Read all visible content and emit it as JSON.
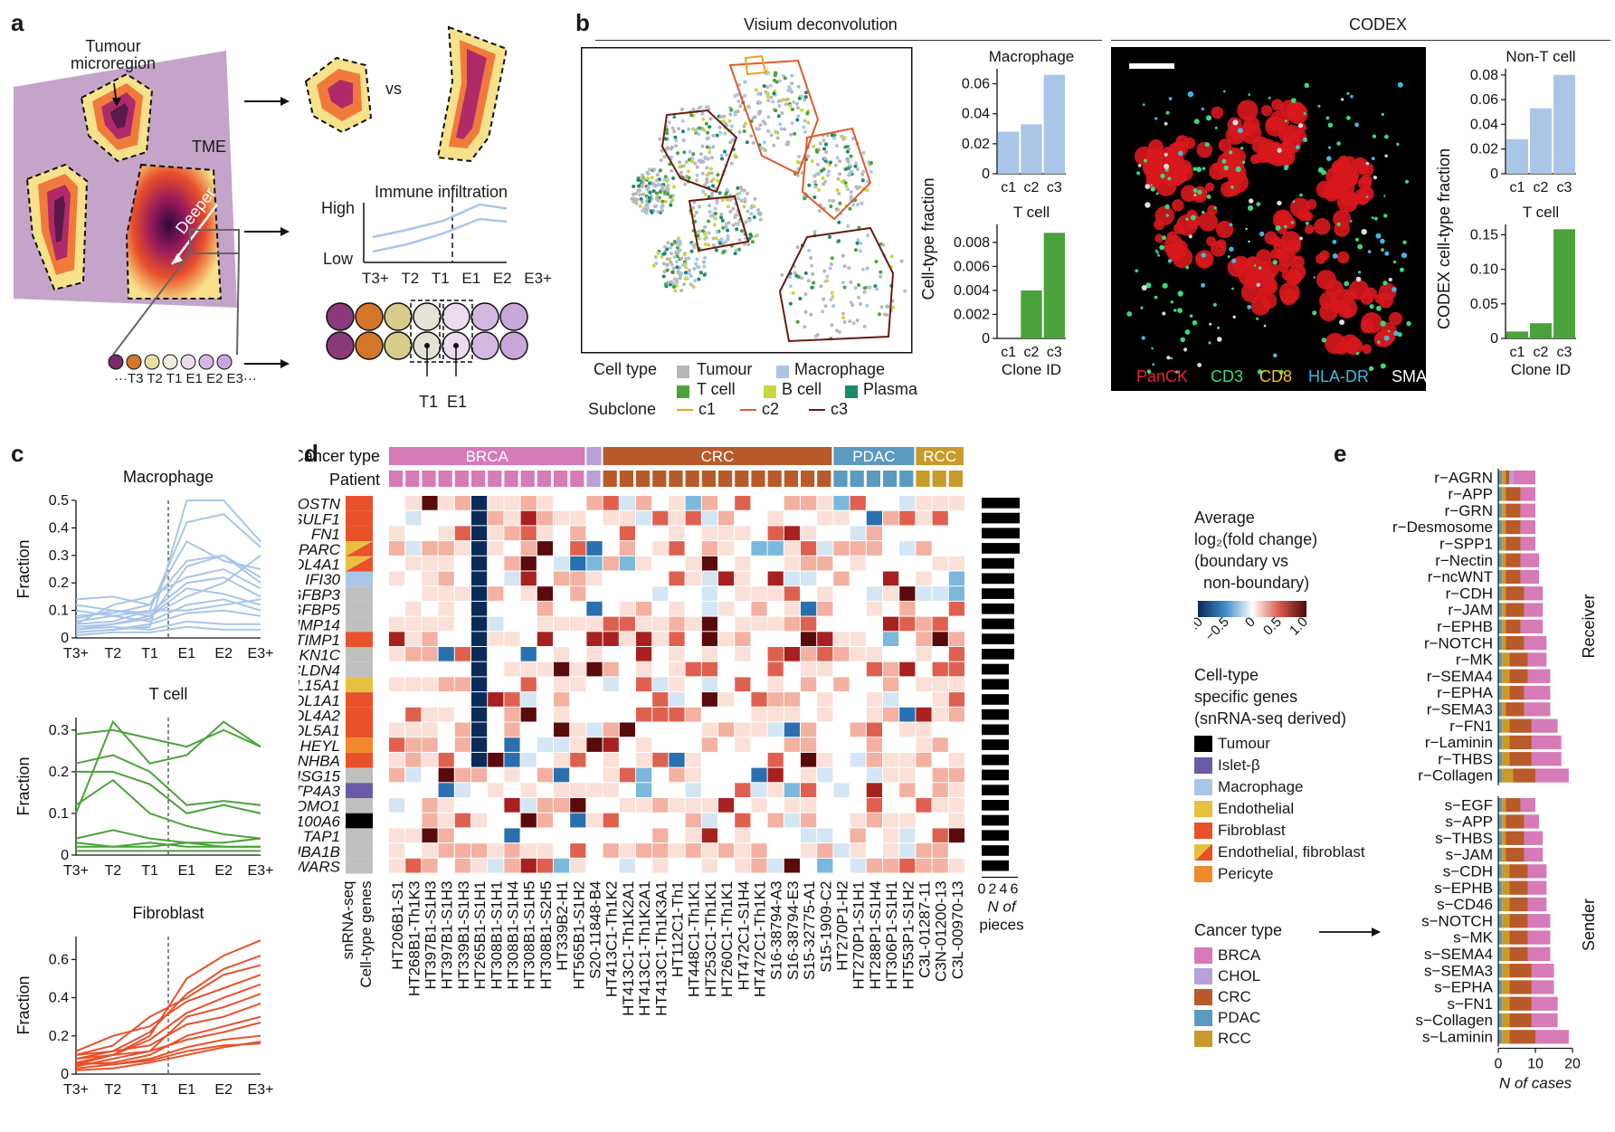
{
  "colors": {
    "tme": "#c4a4c8",
    "tumour_dark": "#5a1a4a",
    "tumour_mid": "#b02a6a",
    "tumour_orange": "#f07a3c",
    "tumour_yellow": "#f7e18a",
    "light_blue": "#a9c6e8",
    "green": "#4ba23a",
    "fibro": "#e8512a",
    "brca": "#d67ab8",
    "chol": "#b8a0d8",
    "crc": "#b85a2a",
    "pdac": "#5a9ac0",
    "rcc": "#c89a2a",
    "heat_neg": "#1a3a6a",
    "heat_pos": "#5a0a0a"
  },
  "panel_a": {
    "label": "a",
    "tumour_microregion": [
      "Tumour",
      "microregion"
    ],
    "tme": "TME",
    "vs": "vs",
    "deeper": "Deeper",
    "immune_title": "Immune infiltration",
    "high": "High",
    "low": "Low",
    "layer_axis": [
      "T3+",
      "T2",
      "T1",
      "E1",
      "E2",
      "E3+"
    ],
    "layer_strip": "···T3 T2 T1 E1 E2 E3···",
    "t1": "T1",
    "e1": "E1"
  },
  "panel_b": {
    "label": "b",
    "visium_title": "Visium deconvolution",
    "codex_title": "CODEX",
    "legend_cell_type": "Cell type",
    "legend_subclone": "Subclone",
    "cell_types": [
      {
        "name": "Tumour",
        "color": "#b8b8b8"
      },
      {
        "name": "Macrophage",
        "color": "#a9c6e8"
      },
      {
        "name": "T cell",
        "color": "#4ba23a"
      },
      {
        "name": "B cell",
        "color": "#c8d840"
      },
      {
        "name": "Plasma",
        "color": "#1a8a6a"
      }
    ],
    "subclones": [
      {
        "name": "c1",
        "color": "#f0a020"
      },
      {
        "name": "c2",
        "color": "#e05a2a"
      },
      {
        "name": "c3",
        "color": "#6a1a10"
      }
    ],
    "codex_markers": [
      {
        "name": "PanCK",
        "color": "#e8242a"
      },
      {
        "name": "CD3",
        "color": "#3ad87a"
      },
      {
        "name": "CD8",
        "color": "#f0c020"
      },
      {
        "name": "HLA-DR",
        "color": "#40b8e0"
      },
      {
        "name": "SMA",
        "color": "#ffffff"
      }
    ]
  },
  "panel_c": {
    "label": "c",
    "xlabel": [
      "T3+",
      "T2",
      "T1",
      "E1",
      "E2",
      "E3+"
    ],
    "ylabel": "Fraction"
  },
  "panel_d": {
    "label": "d",
    "chol_label": "CHOL",
    "cancer_type_label": "Cancer type",
    "patient_label": "Patient",
    "legend_avg_title": [
      "Average",
      "log₂(fold change)",
      "(boundary vs",
      "non-boundary)"
    ],
    "legend_ticks": [
      "−1.0",
      "−0.5",
      "0",
      "0.5",
      "1.0"
    ],
    "legend_celltype_title": [
      "Cell-type",
      "specific genes",
      "(snRNA-seq derived)"
    ],
    "celltype_legend": [
      {
        "name": "Tumour",
        "color": "#000000"
      },
      {
        "name": "Islet-β",
        "color": "#6a5aa8"
      },
      {
        "name": "Macrophage",
        "color": "#a9c6e8"
      },
      {
        "name": "Endothelial",
        "color": "#e8c040"
      },
      {
        "name": "Fibroblast",
        "color": "#e8512a"
      },
      {
        "name": "Endothelial, fibroblast",
        "color": "split"
      },
      {
        "name": "Pericyte",
        "color": "#f08a2a"
      }
    ],
    "cancer_type_legend_title": "Cancer type",
    "cancer_type_legend": [
      {
        "name": "BRCA",
        "color": "#d67ab8"
      },
      {
        "name": "CHOL",
        "color": "#b8a0d8"
      },
      {
        "name": "CRC",
        "color": "#b85a2a"
      },
      {
        "name": "PDAC",
        "color": "#5a9ac0"
      },
      {
        "name": "RCC",
        "color": "#c89a2a"
      }
    ],
    "bar_axis_ticks": [
      "0",
      "2",
      "4",
      "6"
    ],
    "bar_axis_label": [
      "N of",
      "pieces"
    ],
    "left_col_labels": [
      "snRNA-seq",
      "Cell-type genes"
    ],
    "genes": [
      "POSTN",
      "SULF1",
      "FN1",
      "SPARC",
      "COL4A1",
      "IFI30",
      "IGFBP3",
      "IGFBP5",
      "MMP14",
      "TIMP1",
      "CDKN1C",
      "CLDN4",
      "COL15A1",
      "COL1A1",
      "COL4A2",
      "COL5A1",
      "HEYL",
      "INHBA",
      "ISG15",
      "PTP4A3",
      "ROMO1",
      "S100A6",
      "TAP1",
      "TUBA1B",
      "WARS"
    ],
    "gene_celltype": [
      "Fibroblast",
      "Fibroblast",
      "Fibroblast",
      "Endothelial, fibroblast",
      "Endothelial, fibroblast",
      "Macrophage",
      "Other",
      "Other",
      "Other",
      "Fibroblast",
      "Other",
      "Other",
      "Endothelial",
      "Fibroblast",
      "Fibroblast",
      "Fibroblast",
      "Pericyte",
      "Fibroblast",
      "Other",
      "Islet-β",
      "Other",
      "Tumour",
      "Other",
      "Other",
      "Other"
    ],
    "samples": [
      "HT206B1-S1",
      "HT268B1-Th1K3",
      "HT397B1-S1H3",
      "HT397B1-S1H3",
      "HT339B1-S1H3",
      "HT265B1-S1H1",
      "HT308B1-S1H1",
      "HT308B1-S1H4",
      "HT308B1-S1H5",
      "HT308B1-S2H5",
      "HT339B2-H1",
      "HT565B1-S1H2",
      "S20-11848-B4",
      "HT413C1-Th1K2",
      "HT413C1-Th1K2A1",
      "HT413C1-Th1K2A1",
      "HT413C1-Th1K3A1",
      "HT112C1-Th1",
      "HT448C1-Th1K1",
      "HT253C1-Th1K1",
      "HT260C1-Th1K1",
      "HT472C1-S1H4",
      "HT472C1-Th1K1",
      "S16-38794-A3",
      "S16-38794-E3",
      "S15-32775-A1",
      "S15-1909-C2",
      "HT270P1-H2",
      "HT270P1-S1H1",
      "HT288P1-S1H4",
      "HT306P1-S1H1",
      "HT553P1-S1H2",
      "C3L-01287-11",
      "C3N-01200-13",
      "C3L-00970-13"
    ],
    "sample_cancer": [
      "BRCA",
      "BRCA",
      "BRCA",
      "BRCA",
      "BRCA",
      "BRCA",
      "BRCA",
      "BRCA",
      "BRCA",
      "BRCA",
      "BRCA",
      "BRCA",
      "CHOL",
      "CRC",
      "CRC",
      "CRC",
      "CRC",
      "CRC",
      "CRC",
      "CRC",
      "CRC",
      "CRC",
      "CRC",
      "CRC",
      "CRC",
      "CRC",
      "CRC",
      "PDAC",
      "PDAC",
      "PDAC",
      "PDAC",
      "PDAC",
      "RCC",
      "RCC",
      "RCC"
    ],
    "n_pieces": [
      7,
      7,
      7,
      7,
      6,
      6,
      6,
      6,
      6,
      6,
      6,
      5,
      5,
      5,
      5,
      5,
      5,
      5,
      5,
      5,
      5,
      5,
      5,
      5,
      5
    ]
  },
  "panel_e": {
    "label": "e",
    "receiver_label": "Receiver",
    "sender_label": "Sender",
    "xlabel": "N of cases",
    "xticks": [
      "0",
      "10",
      "20"
    ],
    "receiver": [
      {
        "name": "r−AGRN",
        "v": [
          1,
          1,
          1,
          1,
          6
        ]
      },
      {
        "name": "r−APP",
        "v": [
          1,
          1,
          4,
          0,
          4
        ]
      },
      {
        "name": "r−GRN",
        "v": [
          1,
          1,
          4,
          0,
          4
        ]
      },
      {
        "name": "r−Desmosome",
        "v": [
          1,
          1,
          4,
          0,
          4
        ]
      },
      {
        "name": "r−SPP1",
        "v": [
          1,
          1,
          4,
          0,
          4
        ]
      },
      {
        "name": "r−Nectin",
        "v": [
          1,
          1,
          4,
          0,
          5
        ]
      },
      {
        "name": "r−ncWNT",
        "v": [
          1,
          1,
          4,
          0,
          5
        ]
      },
      {
        "name": "r−CDH",
        "v": [
          1,
          1,
          5,
          0,
          5
        ]
      },
      {
        "name": "r−JAM",
        "v": [
          1,
          1,
          5,
          0,
          5
        ]
      },
      {
        "name": "r−EPHB",
        "v": [
          1,
          1,
          4,
          0,
          6
        ]
      },
      {
        "name": "r−NOTCH",
        "v": [
          1,
          1,
          5,
          0,
          6
        ]
      },
      {
        "name": "r−MK",
        "v": [
          1,
          2,
          5,
          0,
          5
        ]
      },
      {
        "name": "r−SEMA4",
        "v": [
          1,
          2,
          5,
          0,
          6
        ]
      },
      {
        "name": "r−EPHA",
        "v": [
          1,
          2,
          4,
          0,
          7
        ]
      },
      {
        "name": "r−SEMA3",
        "v": [
          1,
          1,
          5,
          0,
          7
        ]
      },
      {
        "name": "r−FN1",
        "v": [
          1,
          2,
          6,
          0,
          7
        ]
      },
      {
        "name": "r−Laminin",
        "v": [
          1,
          2,
          6,
          0,
          8
        ]
      },
      {
        "name": "r−THBS",
        "v": [
          1,
          2,
          6,
          0,
          8
        ]
      },
      {
        "name": "r−Collagen",
        "v": [
          1,
          3,
          6,
          0,
          9
        ]
      }
    ],
    "sender": [
      {
        "name": "s−EGF",
        "v": [
          1,
          1,
          4,
          0,
          4
        ]
      },
      {
        "name": "s−APP",
        "v": [
          1,
          1,
          5,
          0,
          4
        ]
      },
      {
        "name": "s−THBS",
        "v": [
          1,
          1,
          5,
          0,
          5
        ]
      },
      {
        "name": "s−JAM",
        "v": [
          1,
          1,
          5,
          0,
          5
        ]
      },
      {
        "name": "s−CDH",
        "v": [
          1,
          2,
          5,
          0,
          5
        ]
      },
      {
        "name": "s−EPHB",
        "v": [
          1,
          2,
          5,
          0,
          5
        ]
      },
      {
        "name": "s−CD46",
        "v": [
          1,
          2,
          5,
          0,
          5
        ]
      },
      {
        "name": "s−NOTCH",
        "v": [
          1,
          2,
          5,
          0,
          6
        ]
      },
      {
        "name": "s−MK",
        "v": [
          1,
          2,
          5,
          0,
          6
        ]
      },
      {
        "name": "s−SEMA4",
        "v": [
          1,
          2,
          5,
          0,
          6
        ]
      },
      {
        "name": "s−SEMA3",
        "v": [
          1,
          2,
          6,
          0,
          6
        ]
      },
      {
        "name": "s−EPHA",
        "v": [
          1,
          2,
          6,
          0,
          6
        ]
      },
      {
        "name": "s−FN1",
        "v": [
          1,
          2,
          6,
          0,
          7
        ]
      },
      {
        "name": "s−Collagen",
        "v": [
          1,
          2,
          6,
          0,
          7
        ]
      },
      {
        "name": "s−Laminin",
        "v": [
          1,
          2,
          7,
          0,
          9
        ]
      }
    ]
  },
  "chart_data": [
    {
      "type": "bar",
      "title": "Macrophage",
      "categories": [
        "c1",
        "c2",
        "c3"
      ],
      "values": [
        0.028,
        0.033,
        0.066
      ],
      "ylabel": "Cell-type fraction",
      "ylim": [
        0,
        0.07
      ],
      "yticks": [
        "0",
        "0.02",
        "0.04",
        "0.06"
      ]
    },
    {
      "type": "bar",
      "title": "T cell",
      "categories": [
        "c1",
        "c2",
        "c3"
      ],
      "values": [
        0.0,
        0.004,
        0.0088
      ],
      "xlabel": "Clone ID",
      "ylim": [
        0,
        0.0095
      ],
      "yticks": [
        "0",
        "0.002",
        "0.004",
        "0.006",
        "0.008"
      ]
    },
    {
      "type": "bar",
      "title": "Non-T cell",
      "categories": [
        "c1",
        "c2",
        "c3"
      ],
      "values": [
        0.028,
        0.053,
        0.08
      ],
      "ylabel": "CODEX cell-type fraction",
      "ylim": [
        0,
        0.085
      ],
      "yticks": [
        "0",
        "0.02",
        "0.04",
        "0.06",
        "0.08"
      ]
    },
    {
      "type": "bar",
      "title": "T cell",
      "categories": [
        "c1",
        "c2",
        "c3"
      ],
      "values": [
        0.01,
        0.022,
        0.158
      ],
      "xlabel": "Clone ID",
      "ylim": [
        0,
        0.165
      ],
      "yticks": [
        "0",
        "0.05",
        "0.10",
        "0.15"
      ]
    },
    {
      "type": "line",
      "title": "Macrophage",
      "x": [
        "T3+",
        "T2",
        "T1",
        "E1",
        "E2",
        "E3+"
      ],
      "ylabel": "Fraction",
      "ylim": [
        0,
        0.5
      ],
      "yticks": [
        "0",
        "0.1",
        "0.2",
        "0.3",
        "0.4",
        "0.5"
      ],
      "series": [
        {
          "values": [
            0.02,
            0.03,
            0.04,
            0.5,
            0.5,
            0.35
          ]
        },
        {
          "values": [
            0.06,
            0.08,
            0.1,
            0.42,
            0.45,
            0.33
          ]
        },
        {
          "values": [
            0.14,
            0.15,
            0.12,
            0.35,
            0.28,
            0.25
          ]
        },
        {
          "values": [
            0.08,
            0.09,
            0.12,
            0.28,
            0.3,
            0.2
          ]
        },
        {
          "values": [
            0.05,
            0.12,
            0.15,
            0.22,
            0.25,
            0.18
          ]
        },
        {
          "values": [
            0.04,
            0.05,
            0.08,
            0.15,
            0.2,
            0.3
          ]
        },
        {
          "values": [
            0.1,
            0.08,
            0.06,
            0.12,
            0.14,
            0.1
          ]
        },
        {
          "values": [
            0.02,
            0.03,
            0.05,
            0.09,
            0.1,
            0.08
          ]
        },
        {
          "values": [
            0.03,
            0.04,
            0.03,
            0.06,
            0.05,
            0.05
          ]
        },
        {
          "values": [
            0.07,
            0.1,
            0.09,
            0.2,
            0.22,
            0.15
          ]
        },
        {
          "values": [
            0.01,
            0.02,
            0.02,
            0.04,
            0.03,
            0.03
          ]
        },
        {
          "values": [
            0.05,
            0.06,
            0.1,
            0.1,
            0.12,
            0.14
          ]
        },
        {
          "values": [
            0.12,
            0.1,
            0.08,
            0.18,
            0.16,
            0.12
          ]
        },
        {
          "values": [
            0.03,
            0.05,
            0.07,
            0.26,
            0.3,
            0.22
          ]
        }
      ]
    },
    {
      "type": "line",
      "title": "T cell",
      "x": [
        "T3+",
        "T2",
        "T1",
        "E1",
        "E2",
        "E3+"
      ],
      "ylabel": "Fraction",
      "ylim": [
        0,
        0.33
      ],
      "yticks": [
        "0",
        "0.1",
        "0.2",
        "0.3"
      ],
      "series": [
        {
          "values": [
            0.29,
            0.3,
            0.28,
            0.26,
            0.3,
            0.26
          ]
        },
        {
          "values": [
            0.1,
            0.32,
            0.22,
            0.24,
            0.32,
            0.26
          ]
        },
        {
          "values": [
            0.22,
            0.24,
            0.2,
            0.12,
            0.13,
            0.12
          ]
        },
        {
          "values": [
            0.2,
            0.2,
            0.17,
            0.1,
            0.12,
            0.1
          ]
        },
        {
          "values": [
            0.12,
            0.18,
            0.1,
            0.07,
            0.05,
            0.04
          ]
        },
        {
          "values": [
            0.04,
            0.06,
            0.04,
            0.03,
            0.02,
            0.02
          ]
        },
        {
          "values": [
            0.02,
            0.02,
            0.03,
            0.02,
            0.02,
            0.02
          ]
        },
        {
          "values": [
            0.01,
            0.01,
            0.01,
            0.01,
            0.01,
            0.01
          ]
        },
        {
          "values": [
            0.03,
            0.02,
            0.02,
            0.03,
            0.03,
            0.04
          ]
        }
      ]
    },
    {
      "type": "line",
      "title": "Fibroblast",
      "x": [
        "T3+",
        "T2",
        "T1",
        "E1",
        "E2",
        "E3+"
      ],
      "ylabel": "Fraction",
      "ylim": [
        0,
        0.72
      ],
      "yticks": [
        "0",
        "0.2",
        "0.4",
        "0.6"
      ],
      "series": [
        {
          "values": [
            0.05,
            0.1,
            0.2,
            0.5,
            0.62,
            0.7
          ]
        },
        {
          "values": [
            0.08,
            0.12,
            0.22,
            0.42,
            0.55,
            0.62
          ]
        },
        {
          "values": [
            0.1,
            0.15,
            0.3,
            0.4,
            0.52,
            0.57
          ]
        },
        {
          "values": [
            0.12,
            0.2,
            0.25,
            0.38,
            0.45,
            0.52
          ]
        },
        {
          "values": [
            0.06,
            0.1,
            0.18,
            0.32,
            0.4,
            0.47
          ]
        },
        {
          "values": [
            0.04,
            0.08,
            0.12,
            0.3,
            0.35,
            0.42
          ]
        },
        {
          "values": [
            0.1,
            0.12,
            0.15,
            0.26,
            0.3,
            0.37
          ]
        },
        {
          "values": [
            0.05,
            0.06,
            0.1,
            0.2,
            0.25,
            0.3
          ]
        },
        {
          "values": [
            0.08,
            0.1,
            0.12,
            0.18,
            0.22,
            0.27
          ]
        },
        {
          "values": [
            0.03,
            0.05,
            0.08,
            0.14,
            0.18,
            0.2
          ]
        },
        {
          "values": [
            0.02,
            0.03,
            0.06,
            0.1,
            0.14,
            0.17
          ]
        },
        {
          "values": [
            0.06,
            0.05,
            0.07,
            0.12,
            0.15,
            0.16
          ]
        }
      ]
    }
  ]
}
